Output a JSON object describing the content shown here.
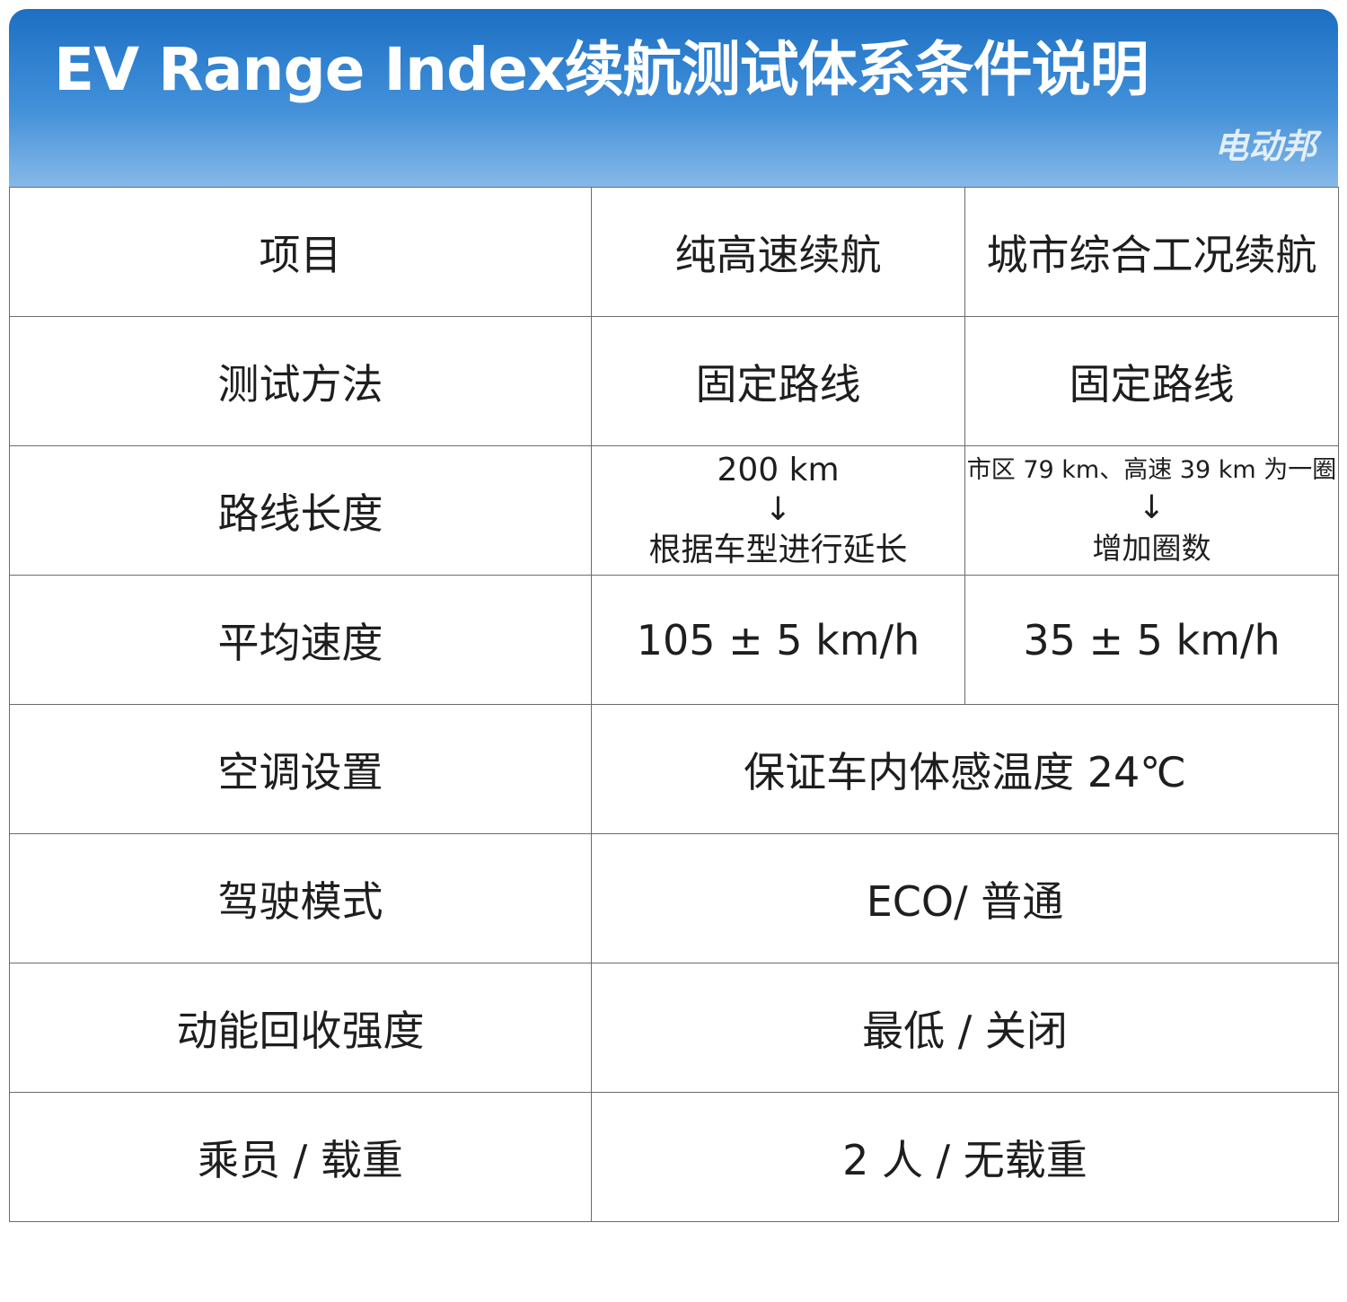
{
  "header": {
    "title": "EV Range Index续航测试体系条件说明",
    "brand": "电动邦"
  },
  "table": {
    "columns": [
      "项目",
      "纯高速续航",
      "城市综合工况续航"
    ],
    "rows": {
      "method": {
        "label": "测试方法",
        "highway": "固定路线",
        "city": "固定路线"
      },
      "length": {
        "label": "路线长度",
        "highway_line1": "200 km",
        "highway_arrow": "↓",
        "highway_line2": "根据车型进行延长",
        "city_line1": "市区 79 km、高速 39 km 为一圈",
        "city_arrow": "↓",
        "city_line2": "增加圈数"
      },
      "speed": {
        "label": "平均速度",
        "highway": "105 ± 5 km/h",
        "city": "35 ± 5 km/h"
      },
      "ac": {
        "label": "空调设置",
        "value": "保证车内体感温度 24℃"
      },
      "mode": {
        "label": "驾驶模式",
        "value": "ECO/ 普通"
      },
      "regen": {
        "label": "动能回收强度",
        "value": "最低 / 关闭"
      },
      "load": {
        "label": "乘员 / 载重",
        "value": "2 人 / 无载重"
      }
    }
  },
  "colors": {
    "header_blue": "#2f7fd0",
    "highlight_red": "#d11f17",
    "border": "#6b6b6b"
  }
}
